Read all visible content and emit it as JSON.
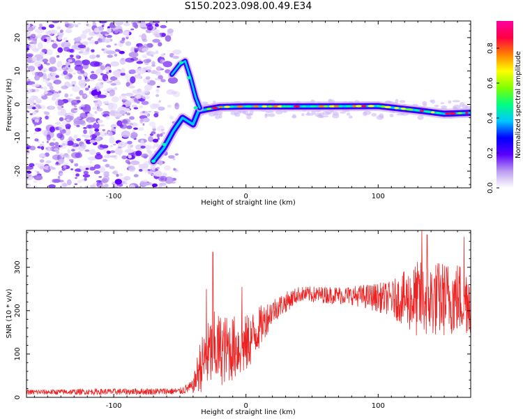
{
  "title": "S150.2023.098.00.49.E34",
  "chart_data": [
    {
      "type": "heatmap",
      "xlabel": "Height of straight line (km)",
      "ylabel": "Frequency (Hz)",
      "xlim": [
        -166,
        170
      ],
      "ylim": [
        -25,
        25
      ],
      "xticks": [
        -100,
        0,
        100
      ],
      "yticks": [
        -20,
        -10,
        0,
        10,
        20
      ],
      "colorbar": {
        "label": "Normalized spectral amplitude",
        "range": [
          0,
          1
        ],
        "ticks": [
          "0.0",
          "0.2",
          "0.4",
          "0.6",
          "0.8"
        ],
        "colormap": [
          "#ffffff",
          "#ba9cf0",
          "#5a00ff",
          "#0000ff",
          "#00c8ff",
          "#00ff80",
          "#80ff00",
          "#ffff00",
          "#ff8000",
          "#ff0040",
          "#ff00a0"
        ]
      },
      "noise_region_km": [
        -166,
        -58
      ],
      "ridge": {
        "description_points": [
          {
            "x": -70,
            "f": -17
          },
          {
            "x": -62,
            "f": -13
          },
          {
            "x": -55,
            "f": -8
          },
          {
            "x": -48,
            "f": -4
          },
          {
            "x": -40,
            "f": -6
          },
          {
            "x": -36,
            "f": -2
          },
          {
            "x": -30,
            "f": -1.5
          },
          {
            "x": -20,
            "f": -0.8
          },
          {
            "x": 0,
            "f": -0.6
          },
          {
            "x": 50,
            "f": -0.6
          },
          {
            "x": 100,
            "f": -0.5
          },
          {
            "x": 130,
            "f": -1.8
          },
          {
            "x": 150,
            "f": -2.8
          },
          {
            "x": 170,
            "f": -2.5
          }
        ],
        "upper_branch": [
          {
            "x": -56,
            "f": 9
          },
          {
            "x": -50,
            "f": 12
          },
          {
            "x": -46,
            "f": 13
          },
          {
            "x": -42,
            "f": 8
          },
          {
            "x": -38,
            "f": 2
          },
          {
            "x": -35,
            "f": -1
          }
        ]
      }
    },
    {
      "type": "line",
      "xlabel": "Height of straight line (km)",
      "ylabel": "SNR (10 * v/v)",
      "xlim": [
        -166,
        170
      ],
      "ylim": [
        0,
        385
      ],
      "xticks": [
        -100,
        0,
        100
      ],
      "yticks": [
        0,
        100,
        200,
        300
      ],
      "color": "#ee2222",
      "profile": [
        {
          "x": -166,
          "mean": 12,
          "spread": 6
        },
        {
          "x": -50,
          "mean": 14,
          "spread": 8
        },
        {
          "x": -40,
          "mean": 25,
          "spread": 15
        },
        {
          "x": -35,
          "mean": 70,
          "spread": 60
        },
        {
          "x": -25,
          "mean": 110,
          "spread": 90
        },
        {
          "x": -15,
          "mean": 110,
          "spread": 80
        },
        {
          "x": 0,
          "mean": 120,
          "spread": 70
        },
        {
          "x": 10,
          "mean": 160,
          "spread": 50
        },
        {
          "x": 20,
          "mean": 200,
          "spread": 30
        },
        {
          "x": 40,
          "mean": 238,
          "spread": 18
        },
        {
          "x": 80,
          "mean": 235,
          "spread": 22
        },
        {
          "x": 110,
          "mean": 228,
          "spread": 40
        },
        {
          "x": 130,
          "mean": 225,
          "spread": 90
        },
        {
          "x": 170,
          "mean": 230,
          "spread": 85
        }
      ],
      "peaks": [
        {
          "x": -25,
          "y": 335
        },
        {
          "x": -30,
          "y": 250
        },
        {
          "x": -3,
          "y": 255
        },
        {
          "x": 133,
          "y": 385
        },
        {
          "x": 137,
          "y": 375
        },
        {
          "x": 165,
          "y": 370
        }
      ]
    }
  ]
}
